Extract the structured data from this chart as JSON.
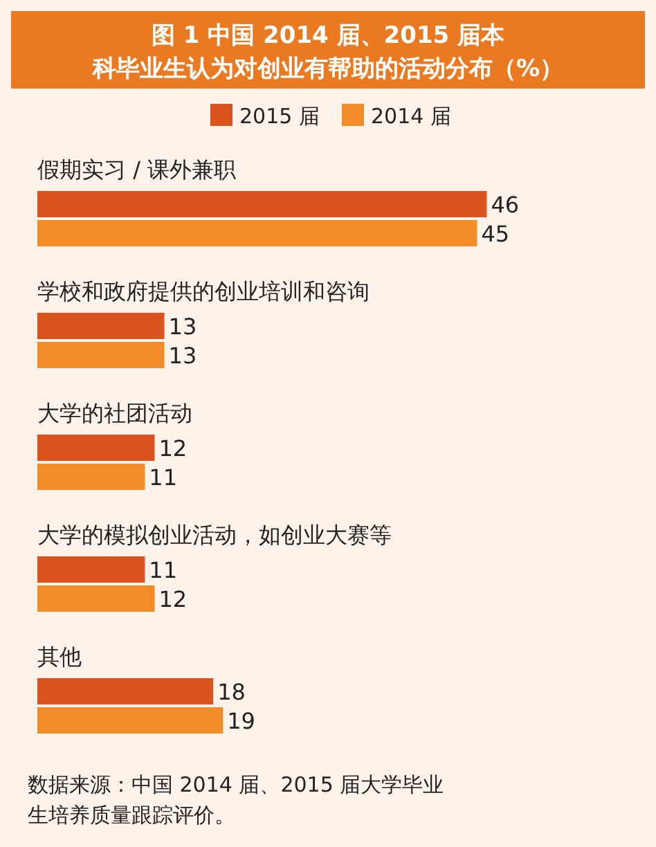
{
  "chart_data": {
    "type": "bar",
    "orientation": "horizontal",
    "title": "图 1  中国 2014 届、2015 届本科毕业生认为对创业有帮助的活动分布（%）",
    "categories": [
      "假期实习 / 课外兼职",
      "学校和政府提供的创业培训和咨询",
      "大学的社团活动",
      "大学的模拟创业活动，如创业大赛等",
      "其他"
    ],
    "series": [
      {
        "name": "2015 届",
        "color": "#d9541e",
        "values": [
          46,
          13,
          12,
          11,
          18
        ]
      },
      {
        "name": "2014 届",
        "color": "#f28c28",
        "values": [
          45,
          13,
          11,
          12,
          19
        ]
      }
    ],
    "data_labels": true,
    "legend": "top",
    "annotations": [
      "数据来源：中国 2014 届、2015 届大学毕业生培养质量跟踪评价。"
    ]
  }
}
